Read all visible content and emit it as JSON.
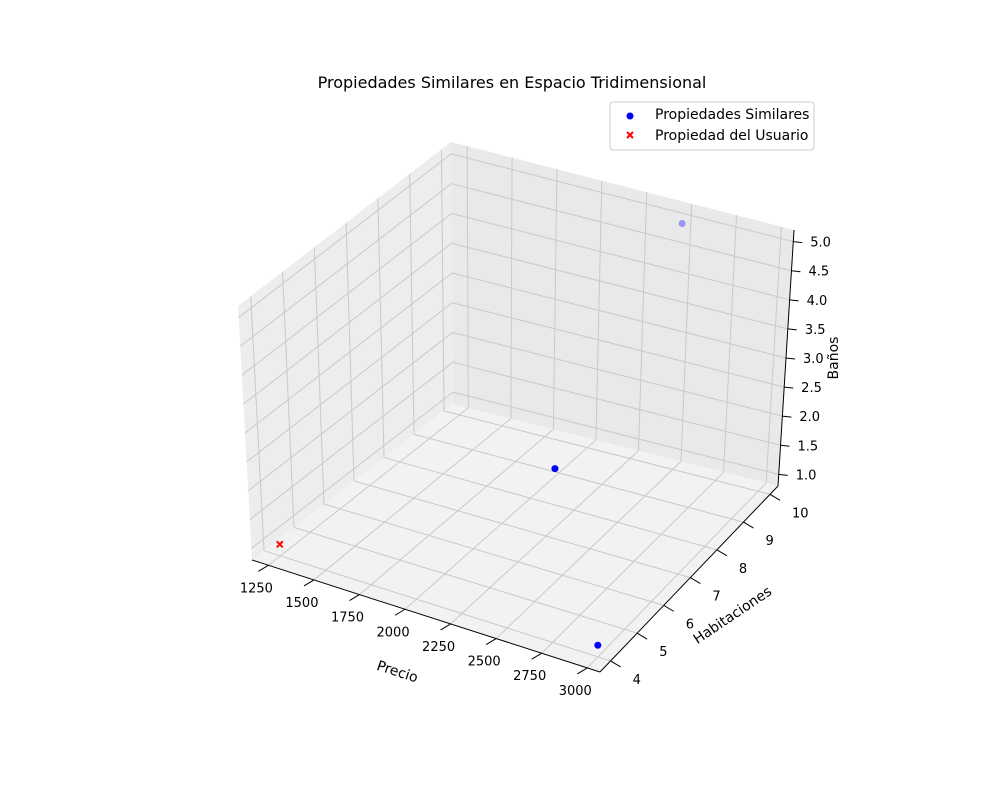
{
  "chart_data": {
    "type": "scatter",
    "title": "Propiedades Similares en Espacio Tridimensional",
    "xlabel": "Precio",
    "ylabel": "Habitaciones",
    "zlabel": "Baños",
    "xlim": [
      1160,
      3070
    ],
    "ylim": [
      3.6,
      10.3
    ],
    "zlim": [
      0.8,
      5.2
    ],
    "xticks": [
      1250,
      1500,
      1750,
      2000,
      2250,
      2500,
      2750,
      3000
    ],
    "yticks": [
      4,
      5,
      6,
      7,
      8,
      9,
      10
    ],
    "zticks": [
      1.0,
      1.5,
      2.0,
      2.5,
      3.0,
      3.5,
      4.0,
      4.5,
      5.0
    ],
    "grid": true,
    "legend_position": "upper-right",
    "series": [
      {
        "name": "Propiedades Similares",
        "marker": "circle",
        "color": "#0000ff",
        "points": [
          {
            "x": 2500,
            "y": 10,
            "z": 5.0
          },
          {
            "x": 2300,
            "y": 7,
            "z": 2.0
          },
          {
            "x": 3000,
            "y": 4,
            "z": 1.0
          }
        ]
      },
      {
        "name": "Propiedad del Usuario",
        "marker": "x",
        "color": "#ff0000",
        "points": [
          {
            "x": 1250,
            "y": 4,
            "z": 1.0
          }
        ]
      }
    ]
  }
}
